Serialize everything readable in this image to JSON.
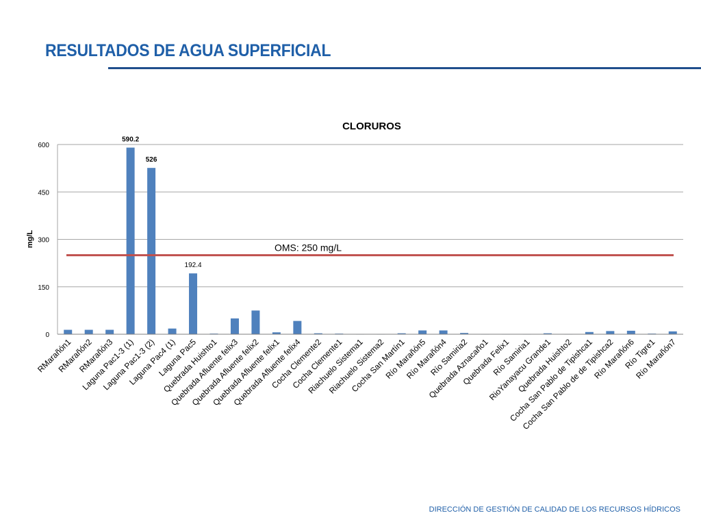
{
  "slide": {
    "title": "RESULTADOS DE AGUA SUPERFICIAL",
    "footer": "DIRECCIÓN DE GESTIÓN DE CALIDAD DE LOS RECURSOS HÍDRICOS",
    "accent_color": "#1f5fa8"
  },
  "chart_data": {
    "type": "bar",
    "title": "CLORUROS",
    "xlabel": "",
    "ylabel": "mg/L",
    "ylim": [
      0,
      600
    ],
    "yticks": [
      0,
      150,
      300,
      450,
      600
    ],
    "grid": true,
    "legend": "none",
    "bar_color": "#4f81bd",
    "categories": [
      "RMarañón1",
      "RMarañón2",
      "RMarañón3",
      "Laguna Pac1-3 (1)",
      "Laguna Pac1-3 (2)",
      "Laguna Pac4 (1)",
      "Laguna Pac5",
      "Quebrada Huishto1",
      "Quebrada Afluente felix3",
      "Quebrada Afluente felix2",
      "Quebrada Afluente felix1",
      "Quebrada Afluente felix4",
      "Cocha Clemente2",
      "Cocha Clemente1",
      "Riachuelo Sistema1",
      "Riachuelo Sistema2",
      "Cocha San Martín1",
      "Río Marañón5",
      "Río Marañón4",
      "Río Samiria2",
      "Quebrada Aznacaño1",
      "Quebrada Felix1",
      "Río Samiria1",
      "RioYanayacu Grande1",
      "Quebrada Huishto2",
      "Cocha San Pablo de Tipishca1",
      "Cocha San Pablo de de Tipishca2",
      "Río Marañón6",
      "Río Tigre1",
      "Río Marañón7"
    ],
    "values": [
      14,
      14,
      14,
      590.2,
      526,
      18,
      192.4,
      2,
      50,
      75,
      6,
      42,
      3,
      2,
      1,
      1,
      3,
      12,
      12,
      4,
      1,
      1,
      1,
      3,
      1,
      7,
      10,
      11,
      2,
      9
    ],
    "data_labels": [
      {
        "index": 3,
        "text": "590.2",
        "bold": true
      },
      {
        "index": 4,
        "text": "526",
        "bold": true
      },
      {
        "index": 6,
        "text": "192.4",
        "bold": false
      }
    ],
    "reference_line": {
      "value": 250,
      "label": "OMS: 250 mg/L",
      "color": "#c0504d"
    }
  }
}
